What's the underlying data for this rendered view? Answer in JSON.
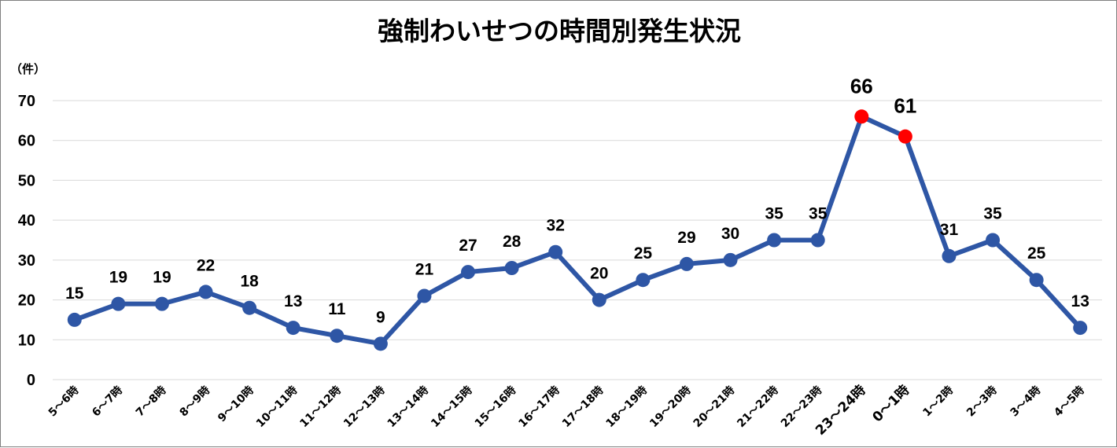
{
  "chart_data": {
    "type": "line",
    "title": "強制わいせつの時間別発生状況",
    "ylabel": "（件）",
    "xlabel": "",
    "ylim": [
      0,
      70
    ],
    "yticks": [
      "0",
      "10",
      "20",
      "30",
      "40",
      "50",
      "60",
      "70"
    ],
    "grid": true,
    "legend": "none",
    "categories": [
      "5～6時",
      "6～7時",
      "7～8時",
      "8～9時",
      "9～10時",
      "10～11時",
      "11～12時",
      "12～13時",
      "13～14時",
      "14～15時",
      "15～16時",
      "16～17時",
      "17～18時",
      "18～19時",
      "19～20時",
      "20～21時",
      "21～22時",
      "22～23時",
      "23～24時",
      "0～1時",
      "1～2時",
      "2～3時",
      "3～4時",
      "4～5時"
    ],
    "values": [
      15,
      19,
      19,
      22,
      18,
      13,
      11,
      9,
      21,
      27,
      28,
      32,
      20,
      25,
      29,
      30,
      35,
      35,
      66,
      61,
      31,
      35,
      25,
      13
    ],
    "value_labels": [
      "15",
      "19",
      "19",
      "22",
      "18",
      "13",
      "11",
      "9",
      "21",
      "27",
      "28",
      "32",
      "20",
      "25",
      "29",
      "30",
      "35",
      "35",
      "66",
      "61",
      "31",
      "35",
      "25",
      "13"
    ],
    "highlighted": [
      "23～24時",
      "0～1時"
    ],
    "colors": {
      "line": "#2e56a5",
      "marker": "#2e56a5",
      "highlight": "#ff0000",
      "grid": "#d9d9d9",
      "text": "#000000"
    }
  }
}
